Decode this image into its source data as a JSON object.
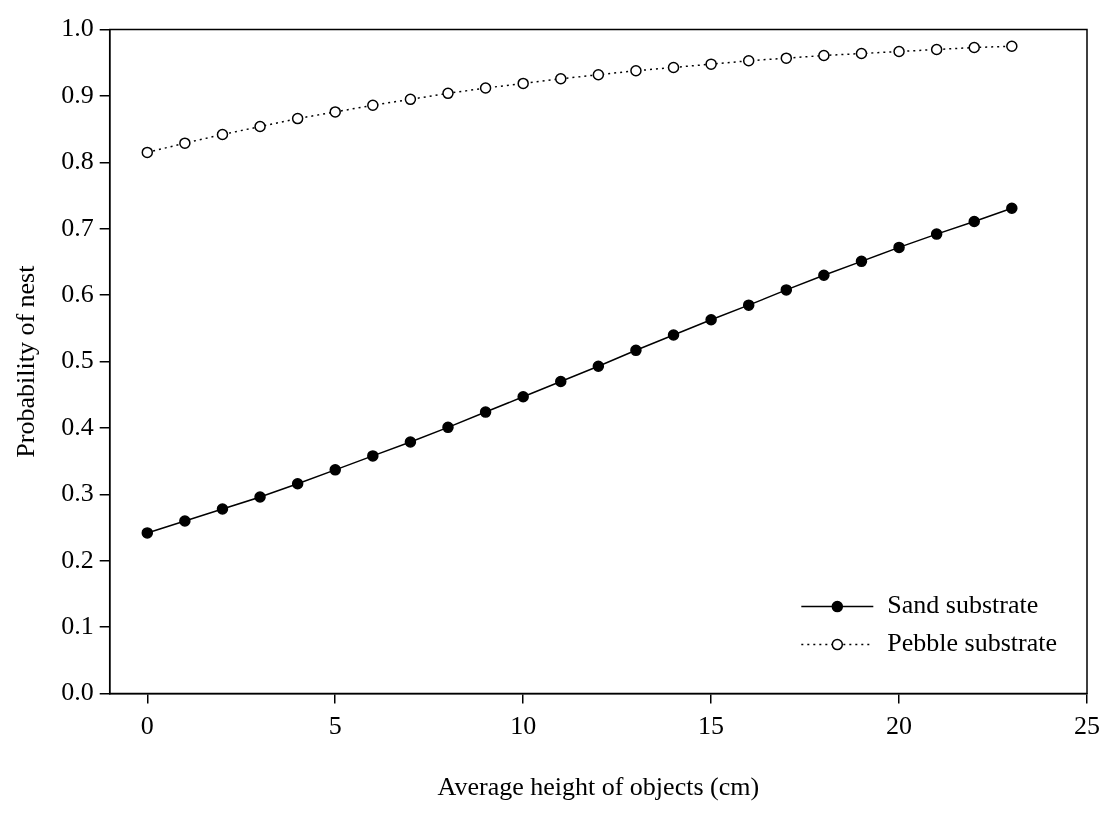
{
  "chart_data": {
    "type": "line",
    "xlabel": "Average height of objects (cm)",
    "ylabel": "Probability of nest",
    "x": [
      0,
      1,
      2,
      3,
      4,
      5,
      6,
      7,
      8,
      9,
      10,
      11,
      12,
      13,
      14,
      15,
      16,
      17,
      18,
      19,
      20,
      21,
      22,
      23
    ],
    "series": [
      {
        "name": "Sand substrate",
        "color": "#000000",
        "marker": "circle",
        "line_style": "solid",
        "values": [
          0.242,
          0.26,
          0.278,
          0.296,
          0.316,
          0.337,
          0.358,
          0.379,
          0.401,
          0.424,
          0.447,
          0.47,
          0.493,
          0.517,
          0.54,
          0.563,
          0.585,
          0.608,
          0.63,
          0.651,
          0.672,
          0.692,
          0.711,
          0.731
        ]
      },
      {
        "name": "Pebble substrate",
        "color": "#000000",
        "marker": "circle",
        "line_style": "dotted",
        "values": [
          0.815,
          0.829,
          0.842,
          0.854,
          0.866,
          0.876,
          0.886,
          0.895,
          0.904,
          0.912,
          0.919,
          0.926,
          0.932,
          0.938,
          0.943,
          0.948,
          0.953,
          0.957,
          0.961,
          0.964,
          0.967,
          0.97,
          0.973,
          0.975
        ]
      }
    ],
    "xlim": [
      -1,
      25
    ],
    "xticks": [
      0,
      5,
      10,
      15,
      20,
      25
    ],
    "ylim": [
      0,
      1
    ],
    "yticks": [
      {
        "value": 0,
        "label": "0.0"
      },
      {
        "value": 0.1,
        "label": "0.1"
      },
      {
        "value": 0.2,
        "label": "0.2"
      },
      {
        "value": 0.3,
        "label": "0.3"
      },
      {
        "value": 0.4,
        "label": "0.4"
      },
      {
        "value": 0.5,
        "label": "0.5"
      },
      {
        "value": 0.6,
        "label": "0.6"
      },
      {
        "value": 0.7,
        "label": "0.7"
      },
      {
        "value": 0.8,
        "label": "0.8"
      },
      {
        "value": 0.9,
        "label": "0.9"
      },
      {
        "value": 1,
        "label": "1.0"
      }
    ],
    "grid": false,
    "legend": "bottom right"
  }
}
